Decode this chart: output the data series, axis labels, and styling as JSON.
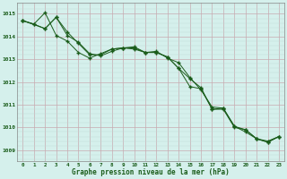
{
  "title": "Graphe pression niveau de la mer (hPa)",
  "background_color": "#d5f0ec",
  "grid_major_color": "#c8aab0",
  "grid_minor_color": "#c0d8d4",
  "line_color": "#1a5c1a",
  "xlim": [
    -0.5,
    23.5
  ],
  "ylim": [
    1008.5,
    1015.5
  ],
  "yticks": [
    1009,
    1010,
    1011,
    1012,
    1013,
    1014,
    1015
  ],
  "xticks": [
    0,
    1,
    2,
    3,
    4,
    5,
    6,
    7,
    8,
    9,
    10,
    11,
    12,
    13,
    14,
    15,
    16,
    17,
    18,
    19,
    20,
    21,
    22,
    23
  ],
  "series": [
    {
      "x": [
        0,
        1,
        2,
        3,
        4,
        5,
        6,
        7,
        8,
        9,
        10,
        11,
        12,
        13,
        14,
        15,
        16,
        17,
        18,
        19,
        20,
        21,
        22,
        23
      ],
      "y": [
        1014.7,
        1014.55,
        1014.35,
        1014.85,
        1014.05,
        1013.75,
        1013.25,
        1013.15,
        1013.35,
        1013.5,
        1013.55,
        1013.3,
        1013.35,
        1013.05,
        1012.85,
        1012.2,
        1011.65,
        1010.9,
        1010.85,
        1010.05,
        1009.9,
        1009.5,
        1009.35,
        1009.6
      ]
    },
    {
      "x": [
        0,
        1,
        2,
        3,
        4,
        5,
        6,
        7,
        8,
        9,
        10,
        11,
        12,
        13,
        14,
        15,
        16,
        17,
        18,
        19,
        20,
        21,
        22,
        23
      ],
      "y": [
        1014.7,
        1014.55,
        1015.05,
        1014.05,
        1013.8,
        1013.3,
        1013.05,
        1013.25,
        1013.45,
        1013.5,
        1013.45,
        1013.3,
        1013.3,
        1013.1,
        1012.6,
        1011.8,
        1011.7,
        1010.8,
        1010.85,
        1010.05,
        1009.8,
        1009.5,
        1009.35,
        1009.6
      ]
    },
    {
      "x": [
        0,
        2,
        3,
        4,
        5,
        6,
        7,
        8,
        9,
        10,
        11,
        12,
        13,
        14,
        15,
        16,
        17,
        18,
        19,
        20,
        21,
        22,
        23
      ],
      "y": [
        1014.7,
        1014.35,
        1014.85,
        1014.2,
        1013.7,
        1013.2,
        1013.2,
        1013.45,
        1013.5,
        1013.5,
        1013.3,
        1013.3,
        1013.1,
        1012.6,
        1012.15,
        1011.75,
        1010.8,
        1010.8,
        1010.0,
        1009.9,
        1009.5,
        1009.4,
        1009.6
      ]
    }
  ]
}
